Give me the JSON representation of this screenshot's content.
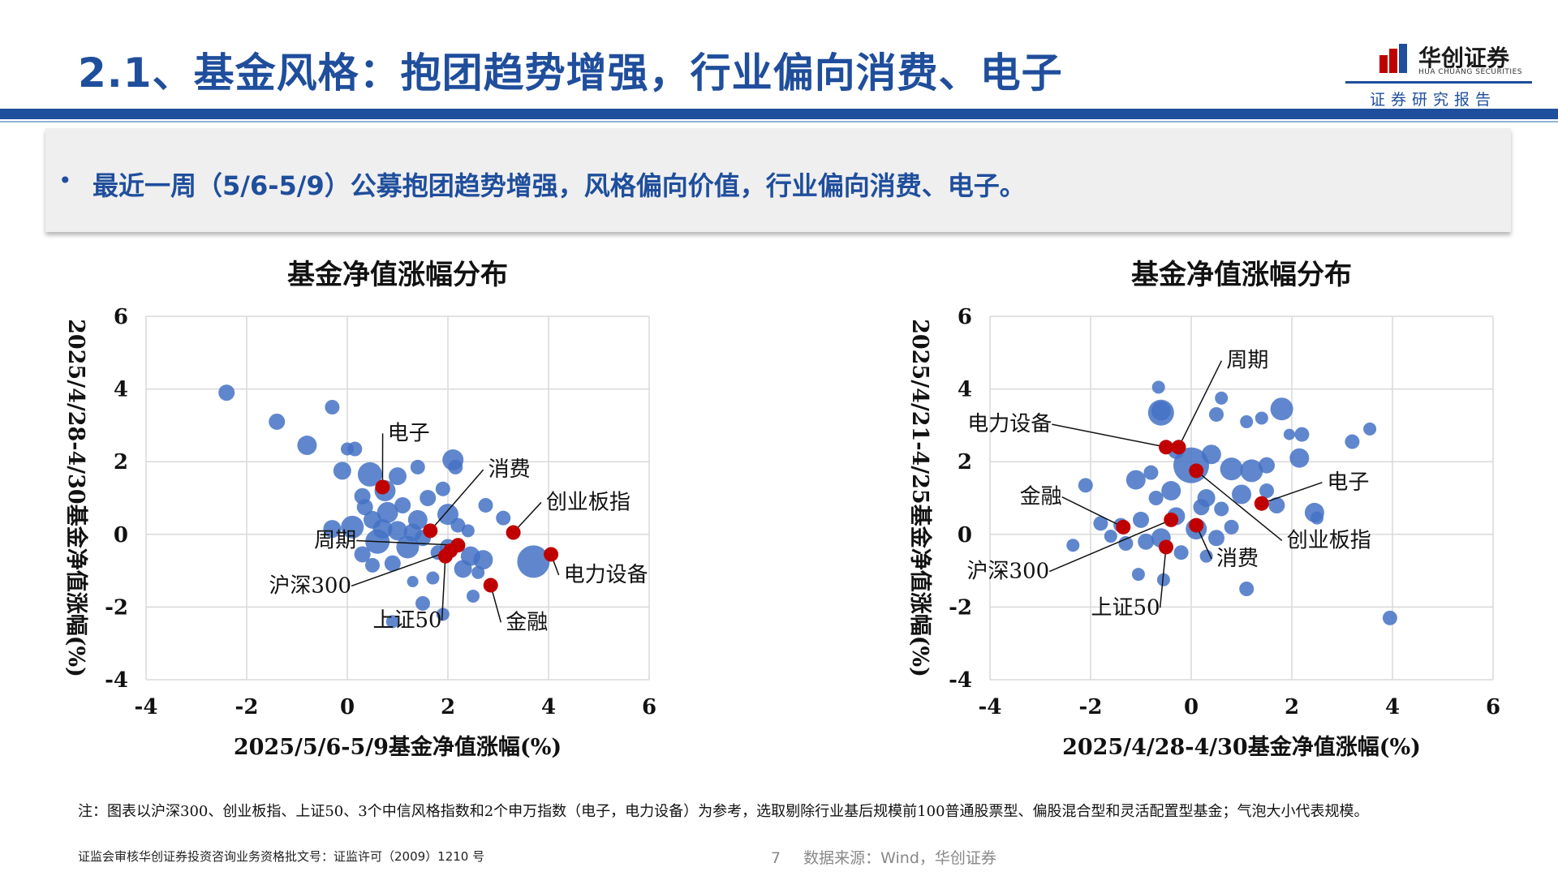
{
  "header": {
    "title": "2.1、基金风格：抱团趋势增强，行业偏向消费、电子",
    "logo_name": "华创证券",
    "logo_en": "HUA CHUANG SECURITIES",
    "logo_tag": "证券研究报告"
  },
  "summary": {
    "bullet": "•",
    "text": "最近一周（5/6-5/9）公募抱团趋势增强，风格偏向价值，行业偏向消费、电子。"
  },
  "colors": {
    "brand": "#1f4e9c",
    "bubble": "#4472c4",
    "highlight": "#c00000",
    "grid": "#d9d9d9"
  },
  "chart_data": [
    {
      "type": "scatter",
      "title": "基金净值涨幅分布",
      "xlabel": "2025/5/6-5/9基金净值涨幅(%)",
      "ylabel": "2025/4/28-4/30基金净值涨幅(%)",
      "xlim": [
        -4,
        6
      ],
      "ylim": [
        -4,
        6
      ],
      "xticks": [
        -4,
        -2,
        0,
        2,
        4,
        6
      ],
      "yticks": [
        -4,
        -2,
        0,
        2,
        4,
        6
      ],
      "bubbles": [
        {
          "x": -2.4,
          "y": 3.9,
          "r": 10
        },
        {
          "x": -1.4,
          "y": 3.1,
          "r": 10
        },
        {
          "x": -0.8,
          "y": 2.45,
          "r": 12
        },
        {
          "x": -0.3,
          "y": 3.5,
          "r": 9
        },
        {
          "x": -0.1,
          "y": 1.75,
          "r": 11
        },
        {
          "x": 0.0,
          "y": 2.35,
          "r": 8
        },
        {
          "x": 0.15,
          "y": 2.35,
          "r": 9
        },
        {
          "x": 0.45,
          "y": 1.65,
          "r": 15
        },
        {
          "x": 0.3,
          "y": 1.05,
          "r": 10
        },
        {
          "x": 0.75,
          "y": 1.2,
          "r": 13
        },
        {
          "x": 1.0,
          "y": 1.6,
          "r": 11
        },
        {
          "x": 1.4,
          "y": 1.85,
          "r": 9
        },
        {
          "x": 2.1,
          "y": 2.05,
          "r": 13
        },
        {
          "x": 2.15,
          "y": 1.85,
          "r": 9
        },
        {
          "x": 1.9,
          "y": 1.25,
          "r": 9
        },
        {
          "x": 1.6,
          "y": 1.0,
          "r": 10
        },
        {
          "x": -0.3,
          "y": 0.15,
          "r": 11
        },
        {
          "x": 0.1,
          "y": 0.2,
          "r": 14
        },
        {
          "x": 0.5,
          "y": 0.4,
          "r": 11
        },
        {
          "x": 0.6,
          "y": -0.2,
          "r": 15
        },
        {
          "x": 0.8,
          "y": 0.6,
          "r": 13
        },
        {
          "x": 1.0,
          "y": 0.1,
          "r": 12
        },
        {
          "x": 1.1,
          "y": 0.8,
          "r": 10
        },
        {
          "x": 1.2,
          "y": -0.35,
          "r": 14
        },
        {
          "x": 1.4,
          "y": 0.4,
          "r": 12
        },
        {
          "x": 1.5,
          "y": -0.1,
          "r": 10
        },
        {
          "x": 0.3,
          "y": -0.55,
          "r": 10
        },
        {
          "x": 0.5,
          "y": -0.85,
          "r": 9
        },
        {
          "x": 0.9,
          "y": -0.8,
          "r": 10
        },
        {
          "x": 2.0,
          "y": 0.55,
          "r": 13
        },
        {
          "x": 2.2,
          "y": 0.25,
          "r": 9
        },
        {
          "x": 2.45,
          "y": -0.6,
          "r": 12
        },
        {
          "x": 2.3,
          "y": -0.95,
          "r": 11
        },
        {
          "x": 2.7,
          "y": -0.7,
          "r": 12
        },
        {
          "x": 2.75,
          "y": 0.8,
          "r": 9
        },
        {
          "x": 3.1,
          "y": 0.45,
          "r": 9
        },
        {
          "x": 2.4,
          "y": 0.1,
          "r": 8
        },
        {
          "x": 2.0,
          "y": -0.35,
          "r": 10
        },
        {
          "x": 2.6,
          "y": -1.05,
          "r": 8
        },
        {
          "x": 3.7,
          "y": -0.75,
          "r": 20
        },
        {
          "x": 2.5,
          "y": -1.7,
          "r": 8
        },
        {
          "x": 1.5,
          "y": -1.9,
          "r": 9
        },
        {
          "x": 1.9,
          "y": -2.2,
          "r": 8
        },
        {
          "x": 1.7,
          "y": -1.2,
          "r": 8
        },
        {
          "x": 1.3,
          "y": -1.3,
          "r": 7
        },
        {
          "x": 0.9,
          "y": -2.4,
          "r": 8
        },
        {
          "x": 1.8,
          "y": -0.5,
          "r": 9
        },
        {
          "x": 1.3,
          "y": 0.05,
          "r": 11
        },
        {
          "x": 0.7,
          "y": 0.15,
          "r": 12
        },
        {
          "x": 0.35,
          "y": 0.75,
          "r": 10
        }
      ],
      "points": [
        {
          "name": "电子",
          "x": 0.7,
          "y": 1.3,
          "label_x": 0.8,
          "label_y": 2.6
        },
        {
          "name": "消费",
          "x": 1.65,
          "y": 0.1,
          "label_x": 2.8,
          "label_y": 1.6
        },
        {
          "name": "创业板指",
          "x": 3.3,
          "y": 0.05,
          "label_x": 3.95,
          "label_y": 0.7
        },
        {
          "name": "电力设备",
          "x": 4.05,
          "y": -0.55,
          "label_x": 4.3,
          "label_y": -1.3
        },
        {
          "name": "周期",
          "x": 2.2,
          "y": -0.3,
          "label_x": -0.4,
          "label_y": -0.35
        },
        {
          "name": "沪深300",
          "x": 2.05,
          "y": -0.45,
          "label_x": -0.5,
          "label_y": -1.6
        },
        {
          "name": "上证50",
          "x": 1.95,
          "y": -0.6,
          "label_x": 1.3,
          "label_y": -2.55
        },
        {
          "name": "金融",
          "x": 2.85,
          "y": -1.4,
          "label_x": 3.15,
          "label_y": -2.6
        }
      ]
    },
    {
      "type": "scatter",
      "title": "基金净值涨幅分布",
      "xlabel": "2025/4/28-4/30基金净值涨幅(%)",
      "ylabel": "2025/4/21-4/25基金净值涨幅(%)",
      "xlim": [
        -4,
        6
      ],
      "ylim": [
        -4,
        6
      ],
      "xticks": [
        -4,
        -2,
        0,
        2,
        4,
        6
      ],
      "yticks": [
        -4,
        -2,
        0,
        2,
        4,
        6
      ],
      "bubbles": [
        {
          "x": -0.65,
          "y": 4.05,
          "r": 8
        },
        {
          "x": -0.6,
          "y": 3.4,
          "r": 12
        },
        {
          "x": -0.6,
          "y": 3.35,
          "r": 16
        },
        {
          "x": 0.6,
          "y": 3.75,
          "r": 8
        },
        {
          "x": 0.5,
          "y": 3.3,
          "r": 9
        },
        {
          "x": 1.8,
          "y": 3.45,
          "r": 14
        },
        {
          "x": 1.4,
          "y": 3.2,
          "r": 8
        },
        {
          "x": 1.1,
          "y": 3.1,
          "r": 8
        },
        {
          "x": 2.2,
          "y": 2.75,
          "r": 9
        },
        {
          "x": 3.2,
          "y": 2.55,
          "r": 9
        },
        {
          "x": 3.55,
          "y": 2.9,
          "r": 8
        },
        {
          "x": 1.95,
          "y": 2.75,
          "r": 7
        },
        {
          "x": 2.15,
          "y": 2.1,
          "r": 12
        },
        {
          "x": 0.0,
          "y": 1.9,
          "r": 22
        },
        {
          "x": 0.4,
          "y": 2.2,
          "r": 12
        },
        {
          "x": 0.8,
          "y": 1.8,
          "r": 14
        },
        {
          "x": 1.2,
          "y": 1.75,
          "r": 14
        },
        {
          "x": 1.5,
          "y": 1.9,
          "r": 10
        },
        {
          "x": -0.3,
          "y": 2.3,
          "r": 10
        },
        {
          "x": -0.8,
          "y": 1.7,
          "r": 9
        },
        {
          "x": -1.1,
          "y": 1.5,
          "r": 12
        },
        {
          "x": -0.4,
          "y": 1.2,
          "r": 12
        },
        {
          "x": -0.7,
          "y": 1.0,
          "r": 9
        },
        {
          "x": 0.3,
          "y": 1.0,
          "r": 11
        },
        {
          "x": 0.6,
          "y": 0.7,
          "r": 9
        },
        {
          "x": 1.0,
          "y": 1.1,
          "r": 12
        },
        {
          "x": 1.5,
          "y": 1.2,
          "r": 9
        },
        {
          "x": 1.7,
          "y": 0.8,
          "r": 10
        },
        {
          "x": 2.45,
          "y": 0.6,
          "r": 12
        },
        {
          "x": 2.5,
          "y": 0.45,
          "r": 8
        },
        {
          "x": -2.1,
          "y": 1.35,
          "r": 9
        },
        {
          "x": -1.8,
          "y": 0.3,
          "r": 9
        },
        {
          "x": -1.4,
          "y": 0.25,
          "r": 9
        },
        {
          "x": -1.0,
          "y": 0.4,
          "r": 10
        },
        {
          "x": -0.3,
          "y": 0.5,
          "r": 11
        },
        {
          "x": 0.1,
          "y": 0.15,
          "r": 13
        },
        {
          "x": 0.5,
          "y": -0.1,
          "r": 10
        },
        {
          "x": -0.6,
          "y": -0.1,
          "r": 12
        },
        {
          "x": -0.9,
          "y": -0.2,
          "r": 10
        },
        {
          "x": -1.3,
          "y": -0.25,
          "r": 9
        },
        {
          "x": -2.35,
          "y": -0.3,
          "r": 8
        },
        {
          "x": -0.2,
          "y": -0.5,
          "r": 9
        },
        {
          "x": 0.3,
          "y": -0.6,
          "r": 8
        },
        {
          "x": -1.05,
          "y": -1.1,
          "r": 8
        },
        {
          "x": -0.55,
          "y": -1.25,
          "r": 8
        },
        {
          "x": 1.1,
          "y": -1.5,
          "r": 9
        },
        {
          "x": 3.95,
          "y": -2.3,
          "r": 9
        },
        {
          "x": 0.8,
          "y": 0.2,
          "r": 9
        },
        {
          "x": -1.6,
          "y": -0.05,
          "r": 8
        },
        {
          "x": 0.2,
          "y": 0.75,
          "r": 10
        }
      ],
      "points": [
        {
          "name": "周期",
          "x": -0.25,
          "y": 2.4,
          "label_x": 0.7,
          "label_y": 4.6
        },
        {
          "name": "电力设备",
          "x": -0.5,
          "y": 2.4,
          "label_x": -3.35,
          "label_y": 2.85
        },
        {
          "name": "电子",
          "x": 1.4,
          "y": 0.85,
          "label_x": 2.7,
          "label_y": 1.25
        },
        {
          "name": "金融",
          "x": -1.35,
          "y": 0.2,
          "label_x": -3.15,
          "label_y": 0.85
        },
        {
          "name": "沪深300",
          "x": -0.4,
          "y": 0.4,
          "label_x": -3.4,
          "label_y": -1.2
        },
        {
          "name": "上证50",
          "x": -0.5,
          "y": -0.35,
          "label_x": -1.2,
          "label_y": -2.2
        },
        {
          "name": "消费",
          "x": 0.1,
          "y": 0.25,
          "label_x": 0.5,
          "label_y": -0.85
        },
        {
          "name": "创业板指",
          "x": 0.1,
          "y": 1.75,
          "label_x": 1.9,
          "label_y": -0.35
        }
      ]
    }
  ],
  "footnote": "注：图表以沪深300、创业板指、上证50、3个中信风格指数和2个申万指数（电子，电力设备）为参考，选取剔除行业基后规模前100普通股票型、偏股混合型和灵活配置型基金；气泡大小代表规模。",
  "license": "证监会审核华创证券投资咨询业务资格批文号：证监许可（2009）1210 号",
  "footer": {
    "page_number": "7",
    "source": "数据来源：Wind，华创证券"
  }
}
